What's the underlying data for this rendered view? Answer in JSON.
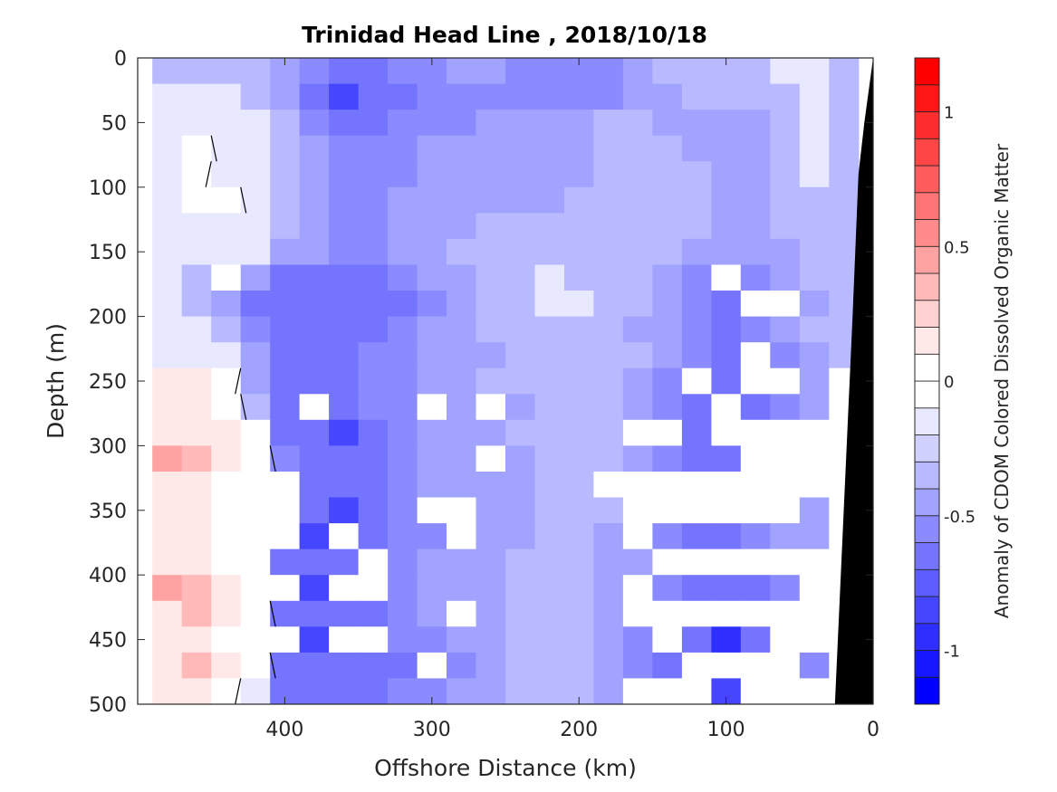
{
  "chart_data": {
    "type": "heatmap",
    "subtype": "filled-contour",
    "title": "Trinidad Head Line , 2018/10/18",
    "xlabel": "Offshore Distance (km)",
    "ylabel": "Depth (m)",
    "colorbar_label": "Anomaly of CDOM Colored Dissolved Organic Matter",
    "xlim": [
      500,
      0
    ],
    "ylim": [
      0,
      500
    ],
    "x_reversed": true,
    "y_reversed": true,
    "xticks": [
      400,
      300,
      200,
      100,
      0
    ],
    "xtick_labels": [
      "400",
      "300",
      "200",
      "100",
      "0"
    ],
    "yticks": [
      0,
      50,
      100,
      150,
      200,
      250,
      300,
      350,
      400,
      450,
      500
    ],
    "ytick_labels": [
      "0",
      "50",
      "100",
      "150",
      "200",
      "250",
      "300",
      "350",
      "400",
      "450",
      "500"
    ],
    "colorbar": {
      "range": [
        -1.2,
        1.2
      ],
      "levels": 24,
      "step": 0.1,
      "ticks": [
        -1,
        -0.5,
        0,
        0.5,
        1
      ],
      "tick_labels": [
        "-1",
        "-0.5",
        "0",
        "0.5",
        "1"
      ],
      "colormap": "blue-white-red",
      "low_color": "#0000ff",
      "mid_color": "#ffffff",
      "high_color": "#ff0000"
    },
    "zero_contour_color": "#000000",
    "bathymetry_color": "#000000",
    "bathymetry": {
      "x_km": [
        0,
        6,
        10,
        14,
        18,
        22,
        26,
        0
      ],
      "depth_m": [
        0,
        50,
        90,
        200,
        300,
        400,
        500,
        500
      ]
    },
    "grid": {
      "x_km": [
        480,
        460,
        440,
        420,
        400,
        380,
        360,
        340,
        320,
        300,
        280,
        260,
        240,
        220,
        200,
        180,
        160,
        140,
        120,
        100,
        80,
        60,
        40,
        20
      ],
      "depth_m": [
        10,
        30,
        50,
        70,
        90,
        110,
        130,
        150,
        170,
        190,
        210,
        230,
        250,
        270,
        290,
        310,
        330,
        350,
        370,
        390,
        410,
        430,
        450,
        470,
        490
      ],
      "values": [
        [
          -0.3,
          -0.3,
          -0.3,
          -0.3,
          -0.4,
          -0.5,
          -0.6,
          -0.6,
          -0.5,
          -0.5,
          -0.4,
          -0.4,
          -0.5,
          -0.5,
          -0.5,
          -0.5,
          -0.4,
          -0.3,
          -0.3,
          -0.3,
          -0.3,
          -0.2,
          -0.2,
          -0.3
        ],
        [
          -0.2,
          -0.2,
          -0.2,
          -0.3,
          -0.4,
          -0.6,
          -0.8,
          -0.7,
          -0.6,
          -0.5,
          -0.5,
          -0.5,
          -0.5,
          -0.5,
          -0.5,
          -0.5,
          -0.4,
          -0.4,
          -0.3,
          -0.3,
          -0.3,
          -0.3,
          -0.2,
          -0.3
        ],
        [
          -0.1,
          -0.1,
          -0.1,
          -0.2,
          -0.3,
          -0.5,
          -0.6,
          -0.6,
          -0.5,
          -0.5,
          -0.5,
          -0.4,
          -0.4,
          -0.4,
          -0.4,
          -0.3,
          -0.3,
          -0.4,
          -0.4,
          -0.4,
          -0.4,
          -0.3,
          -0.2,
          -0.3
        ],
        [
          -0.1,
          0.0,
          -0.1,
          -0.2,
          -0.3,
          -0.4,
          -0.5,
          -0.5,
          -0.5,
          -0.4,
          -0.4,
          -0.4,
          -0.4,
          -0.4,
          -0.4,
          -0.3,
          -0.3,
          -0.3,
          -0.4,
          -0.4,
          -0.4,
          -0.3,
          -0.2,
          -0.3
        ],
        [
          -0.1,
          0.0,
          -0.1,
          -0.2,
          -0.3,
          -0.4,
          -0.5,
          -0.5,
          -0.5,
          -0.4,
          -0.4,
          -0.4,
          -0.4,
          -0.4,
          -0.4,
          -0.3,
          -0.3,
          -0.3,
          -0.3,
          -0.4,
          -0.4,
          -0.3,
          -0.2,
          -0.3
        ],
        [
          -0.1,
          0.0,
          0.0,
          -0.2,
          -0.3,
          -0.4,
          -0.5,
          -0.5,
          -0.4,
          -0.4,
          -0.4,
          -0.4,
          -0.4,
          -0.4,
          -0.3,
          -0.3,
          -0.3,
          -0.3,
          -0.3,
          -0.4,
          -0.4,
          -0.3,
          -0.3,
          -0.3
        ],
        [
          -0.1,
          -0.1,
          -0.1,
          -0.2,
          -0.3,
          -0.4,
          -0.5,
          -0.5,
          -0.4,
          -0.4,
          -0.4,
          -0.3,
          -0.3,
          -0.3,
          -0.3,
          -0.3,
          -0.3,
          -0.3,
          -0.3,
          -0.4,
          -0.4,
          -0.3,
          -0.3,
          -0.3
        ],
        [
          -0.1,
          -0.1,
          -0.1,
          -0.2,
          -0.4,
          -0.4,
          -0.5,
          -0.5,
          -0.4,
          -0.4,
          -0.3,
          -0.3,
          -0.3,
          -0.3,
          -0.3,
          -0.3,
          -0.3,
          -0.3,
          -0.4,
          -0.4,
          -0.4,
          -0.4,
          -0.3,
          -0.3
        ],
        [
          -0.2,
          -0.3,
          null,
          -0.4,
          -0.6,
          -0.6,
          -0.6,
          -0.6,
          -0.5,
          -0.4,
          -0.4,
          -0.3,
          -0.3,
          -0.2,
          -0.3,
          -0.3,
          -0.3,
          -0.4,
          -0.5,
          null,
          -0.5,
          -0.4,
          -0.3,
          -0.3
        ],
        [
          -0.2,
          -0.3,
          -0.4,
          -0.6,
          -0.7,
          -0.7,
          -0.6,
          -0.7,
          -0.6,
          -0.5,
          -0.4,
          -0.3,
          -0.3,
          -0.2,
          -0.2,
          -0.3,
          -0.3,
          -0.4,
          -0.5,
          -0.6,
          null,
          null,
          -0.4,
          -0.3
        ],
        [
          -0.1,
          -0.2,
          -0.3,
          -0.5,
          -0.6,
          -0.7,
          -0.7,
          -0.6,
          -0.5,
          -0.4,
          -0.4,
          -0.3,
          -0.3,
          -0.3,
          -0.3,
          -0.3,
          -0.4,
          -0.4,
          -0.5,
          -0.6,
          -0.5,
          -0.4,
          -0.3,
          -0.3
        ],
        [
          -0.1,
          -0.1,
          -0.2,
          -0.4,
          -0.6,
          -0.6,
          -0.6,
          -0.5,
          -0.5,
          -0.4,
          -0.4,
          -0.4,
          -0.3,
          -0.3,
          -0.3,
          -0.3,
          -0.3,
          -0.4,
          -0.5,
          -0.6,
          null,
          -0.5,
          -0.4,
          -0.3
        ],
        [
          0.1,
          0.1,
          0.0,
          -0.4,
          -0.7,
          -0.7,
          -0.6,
          -0.5,
          -0.5,
          -0.4,
          -0.4,
          -0.3,
          -0.3,
          -0.3,
          -0.3,
          -0.3,
          -0.4,
          -0.5,
          null,
          -0.6,
          null,
          null,
          -0.4,
          null
        ],
        [
          0.2,
          0.1,
          0.0,
          -0.3,
          -0.6,
          null,
          -0.6,
          -0.5,
          -0.5,
          null,
          -0.4,
          null,
          -0.4,
          -0.3,
          -0.3,
          -0.3,
          -0.4,
          -0.5,
          -0.6,
          null,
          -0.6,
          -0.5,
          -0.4,
          null
        ],
        [
          0.2,
          0.1,
          0.1,
          null,
          -0.6,
          -0.7,
          -0.8,
          -0.6,
          -0.5,
          -0.4,
          -0.4,
          -0.4,
          -0.3,
          -0.3,
          -0.3,
          -0.3,
          null,
          null,
          -0.6,
          null,
          null,
          null,
          null,
          null
        ],
        [
          0.4,
          0.3,
          0.1,
          0.0,
          -0.5,
          -0.6,
          -0.7,
          -0.6,
          -0.5,
          -0.4,
          -0.4,
          null,
          -0.4,
          -0.3,
          -0.3,
          -0.3,
          -0.4,
          -0.5,
          -0.6,
          -0.6,
          null,
          null,
          null,
          null
        ],
        [
          0.2,
          0.1,
          0.0,
          null,
          null,
          -0.6,
          -0.7,
          -0.6,
          -0.5,
          -0.4,
          -0.4,
          -0.4,
          -0.4,
          -0.3,
          -0.3,
          null,
          null,
          null,
          null,
          null,
          null,
          null,
          null,
          null
        ],
        [
          0.2,
          0.1,
          0.0,
          null,
          null,
          -0.7,
          -0.8,
          -0.6,
          -0.5,
          null,
          null,
          -0.4,
          -0.4,
          -0.3,
          -0.3,
          -0.3,
          null,
          null,
          null,
          null,
          null,
          null,
          -0.4,
          null
        ],
        [
          0.1,
          0.1,
          0.0,
          null,
          null,
          -0.8,
          null,
          -0.6,
          -0.5,
          -0.5,
          null,
          -0.4,
          -0.4,
          -0.3,
          -0.3,
          -0.4,
          null,
          -0.5,
          -0.6,
          -0.6,
          -0.5,
          -0.4,
          -0.4,
          null
        ],
        [
          0.2,
          0.1,
          0.0,
          null,
          -0.7,
          -0.7,
          -0.7,
          null,
          -0.5,
          -0.4,
          -0.4,
          -0.4,
          -0.3,
          -0.3,
          -0.3,
          -0.4,
          -0.4,
          null,
          null,
          null,
          null,
          null,
          null,
          null
        ],
        [
          0.4,
          0.3,
          0.1,
          null,
          null,
          -0.8,
          null,
          null,
          -0.5,
          -0.4,
          -0.4,
          -0.4,
          -0.3,
          -0.3,
          -0.3,
          -0.4,
          null,
          -0.5,
          -0.6,
          -0.7,
          -0.6,
          -0.5,
          null,
          null
        ],
        [
          0.2,
          0.3,
          0.1,
          0.0,
          -0.7,
          -0.7,
          -0.7,
          -0.6,
          -0.5,
          -0.4,
          null,
          -0.4,
          -0.3,
          -0.3,
          -0.3,
          -0.4,
          null,
          null,
          null,
          null,
          null,
          null,
          null,
          null
        ],
        [
          0.1,
          0.1,
          0.0,
          null,
          null,
          -0.8,
          null,
          null,
          -0.5,
          -0.5,
          -0.4,
          -0.4,
          -0.3,
          -0.3,
          -0.3,
          -0.4,
          -0.5,
          null,
          -0.7,
          -0.9,
          -0.7,
          null,
          null,
          null
        ],
        [
          0.2,
          0.3,
          0.1,
          0.0,
          -0.6,
          -0.7,
          -0.7,
          -0.6,
          -0.6,
          null,
          -0.5,
          -0.4,
          -0.3,
          -0.3,
          -0.3,
          -0.4,
          -0.5,
          -0.6,
          null,
          null,
          null,
          null,
          -0.5,
          null
        ],
        [
          0.1,
          0.1,
          0.0,
          -0.2,
          -0.6,
          -0.6,
          -0.7,
          -0.6,
          -0.5,
          -0.5,
          -0.4,
          -0.4,
          -0.3,
          -0.3,
          -0.3,
          -0.4,
          null,
          null,
          null,
          -0.8,
          null,
          null,
          null,
          null
        ]
      ]
    }
  }
}
